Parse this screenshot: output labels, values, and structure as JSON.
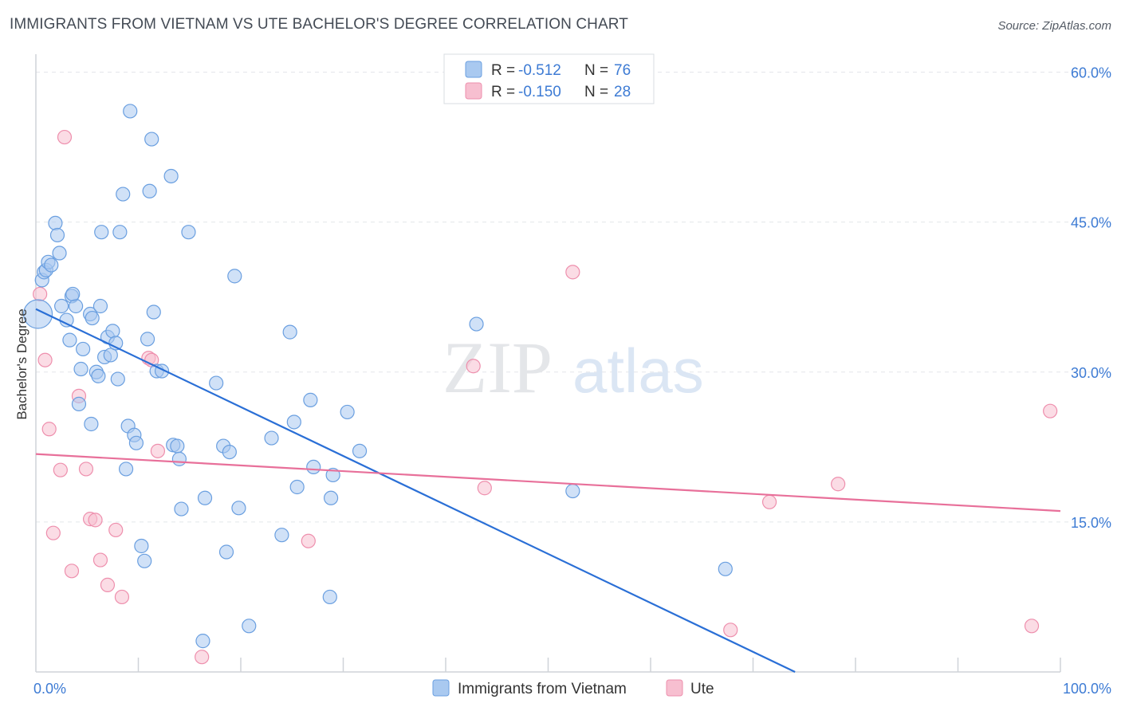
{
  "title": "IMMIGRANTS FROM VIETNAM VS UTE BACHELOR'S DEGREE CORRELATION CHART",
  "source": "Source: ZipAtlas.com",
  "watermark": {
    "zip": "ZIP",
    "atlas": "atlas"
  },
  "colors": {
    "blue_fill": "#a9c9f0",
    "blue_stroke": "#6a9fe0",
    "blue_line": "#2a6fd6",
    "pink_fill": "#f7bfd0",
    "pink_stroke": "#ee8fad",
    "pink_line": "#e8709a",
    "grid": "#e3e6ea",
    "axis": "#cfd3d8",
    "tick_text": "#3d7bd4"
  },
  "legend": {
    "rows": [
      {
        "r_label": "R =",
        "r_value": "-0.512",
        "n_label": "N =",
        "n_value": "76",
        "series": "blue"
      },
      {
        "r_label": "R =",
        "r_value": "-0.150",
        "n_label": "N =",
        "n_value": "28",
        "series": "pink"
      }
    ]
  },
  "chart_data": {
    "type": "scatter",
    "title": "IMMIGRANTS FROM VIETNAM VS UTE BACHELOR'S DEGREE CORRELATION CHART",
    "xlabel": "",
    "ylabel": "Bachelor's Degree",
    "xlim": [
      0,
      100
    ],
    "ylim": [
      0,
      61
    ],
    "x_tick_labels": [
      "0.0%",
      "100.0%"
    ],
    "y_ticks": [
      15,
      30,
      45,
      60
    ],
    "y_tick_labels": [
      "15.0%",
      "30.0%",
      "45.0%",
      "60.0%"
    ],
    "grid": true,
    "legend_position": "top-center",
    "series": [
      {
        "name": "Immigrants from Vietnam",
        "color": "blue",
        "trendline": {
          "x": [
            0,
            74.1
          ],
          "y": [
            36.3,
            0
          ]
        },
        "points": [
          [
            0.2,
            35.8
          ],
          [
            0.6,
            39.2
          ],
          [
            0.8,
            40.0
          ],
          [
            1.0,
            40.2
          ],
          [
            1.2,
            41.0
          ],
          [
            1.5,
            40.7
          ],
          [
            1.9,
            44.9
          ],
          [
            2.1,
            43.7
          ],
          [
            2.3,
            41.9
          ],
          [
            2.5,
            36.6
          ],
          [
            3.0,
            35.2
          ],
          [
            3.5,
            37.6
          ],
          [
            3.3,
            33.2
          ],
          [
            3.9,
            36.6
          ],
          [
            4.2,
            26.8
          ],
          [
            4.4,
            30.3
          ],
          [
            4.6,
            32.3
          ],
          [
            5.3,
            35.8
          ],
          [
            5.5,
            35.4
          ],
          [
            5.4,
            24.8
          ],
          [
            5.9,
            30.0
          ],
          [
            6.1,
            29.6
          ],
          [
            6.3,
            36.6
          ],
          [
            6.4,
            44.0
          ],
          [
            6.7,
            31.5
          ],
          [
            7.0,
            33.5
          ],
          [
            7.3,
            31.7
          ],
          [
            7.5,
            34.1
          ],
          [
            7.8,
            32.9
          ],
          [
            8.0,
            29.3
          ],
          [
            8.2,
            44.0
          ],
          [
            8.5,
            47.8
          ],
          [
            8.8,
            20.3
          ],
          [
            9.0,
            24.6
          ],
          [
            9.2,
            56.1
          ],
          [
            9.6,
            23.7
          ],
          [
            9.8,
            22.9
          ],
          [
            10.3,
            12.6
          ],
          [
            10.6,
            11.1
          ],
          [
            10.9,
            33.3
          ],
          [
            11.1,
            48.1
          ],
          [
            11.3,
            53.3
          ],
          [
            11.5,
            36.0
          ],
          [
            11.8,
            30.1
          ],
          [
            12.3,
            30.1
          ],
          [
            13.2,
            49.6
          ],
          [
            13.4,
            22.7
          ],
          [
            13.8,
            22.6
          ],
          [
            14.0,
            21.3
          ],
          [
            14.2,
            16.3
          ],
          [
            14.9,
            44.0
          ],
          [
            16.3,
            3.1
          ],
          [
            16.5,
            17.4
          ],
          [
            17.6,
            28.9
          ],
          [
            18.3,
            22.6
          ],
          [
            18.6,
            12.0
          ],
          [
            18.9,
            22.0
          ],
          [
            19.4,
            39.6
          ],
          [
            19.8,
            16.4
          ],
          [
            20.8,
            4.6
          ],
          [
            23.0,
            23.4
          ],
          [
            24.0,
            13.7
          ],
          [
            24.8,
            34.0
          ],
          [
            25.2,
            25.0
          ],
          [
            25.5,
            18.5
          ],
          [
            26.8,
            27.2
          ],
          [
            27.1,
            20.5
          ],
          [
            28.7,
            7.5
          ],
          [
            28.8,
            17.4
          ],
          [
            29.0,
            19.7
          ],
          [
            30.4,
            26.0
          ],
          [
            31.6,
            22.1
          ],
          [
            43.0,
            34.8
          ],
          [
            52.4,
            18.1
          ],
          [
            67.3,
            10.3
          ],
          [
            3.6,
            37.8
          ]
        ]
      },
      {
        "name": "Ute",
        "color": "pink",
        "trendline": {
          "x": [
            0,
            100
          ],
          "y": [
            21.8,
            16.1
          ]
        },
        "points": [
          [
            0.4,
            37.8
          ],
          [
            0.9,
            31.2
          ],
          [
            1.3,
            24.3
          ],
          [
            1.7,
            13.9
          ],
          [
            2.4,
            20.2
          ],
          [
            2.8,
            53.5
          ],
          [
            3.5,
            10.1
          ],
          [
            4.2,
            27.6
          ],
          [
            4.9,
            20.3
          ],
          [
            5.3,
            15.3
          ],
          [
            5.8,
            15.2
          ],
          [
            6.3,
            11.2
          ],
          [
            7.0,
            8.7
          ],
          [
            7.8,
            14.2
          ],
          [
            8.4,
            7.5
          ],
          [
            11.0,
            31.4
          ],
          [
            11.3,
            31.2
          ],
          [
            11.9,
            22.1
          ],
          [
            16.2,
            1.5
          ],
          [
            26.6,
            13.1
          ],
          [
            42.7,
            30.6
          ],
          [
            43.8,
            18.4
          ],
          [
            52.4,
            40.0
          ],
          [
            67.8,
            4.2
          ],
          [
            71.6,
            17.0
          ],
          [
            78.3,
            18.8
          ],
          [
            97.2,
            4.6
          ],
          [
            99.0,
            26.1
          ]
        ]
      }
    ]
  },
  "bottom_legend": {
    "items": [
      {
        "label": "Immigrants from Vietnam",
        "series": "blue"
      },
      {
        "label": "Ute",
        "series": "pink"
      }
    ]
  }
}
